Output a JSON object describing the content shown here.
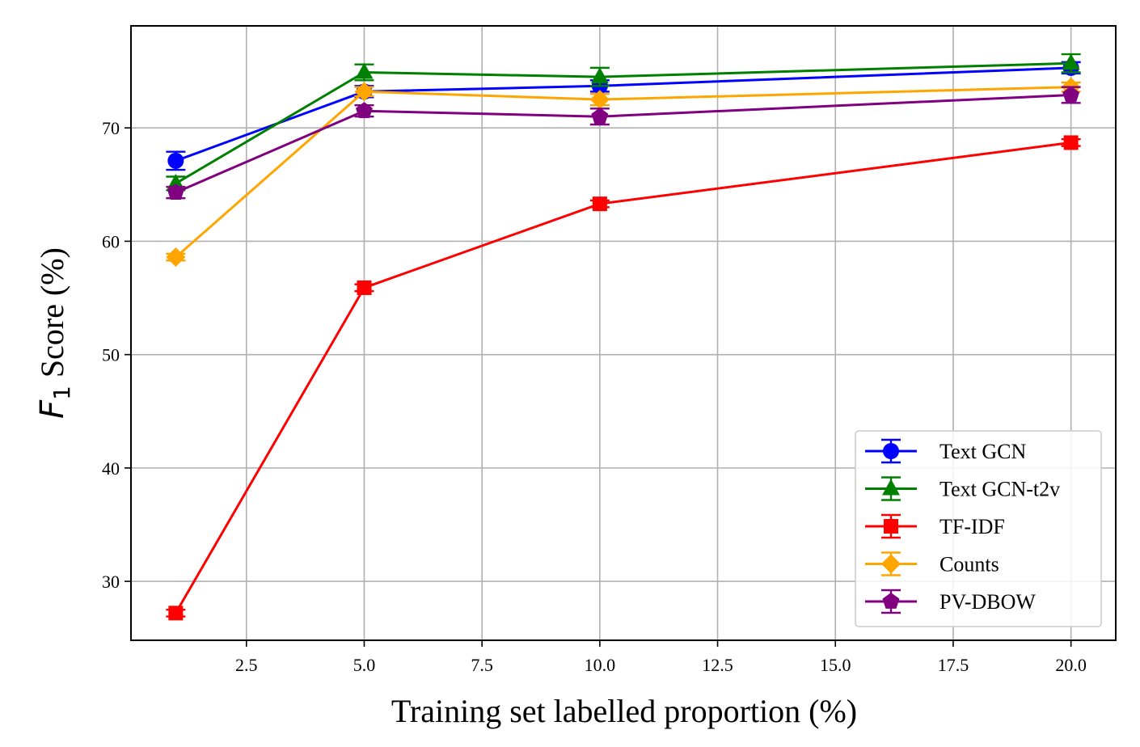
{
  "chart_data": {
    "type": "line",
    "xlabel": "Training set labelled proportion (%)",
    "ylabel": "Score (%)",
    "ylabel_symbol": "F",
    "ylabel_subscript": "1",
    "x": [
      1,
      5,
      10,
      20
    ],
    "xlim": [
      0.05,
      20.95
    ],
    "ylim": [
      24.8,
      79.0
    ],
    "xticks": [
      "2.5",
      "5.0",
      "7.5",
      "10.0",
      "12.5",
      "15.0",
      "17.5",
      "20.0"
    ],
    "yticks": [
      "30",
      "40",
      "50",
      "60",
      "70"
    ],
    "grid": true,
    "legend_position": "lower right",
    "series": [
      {
        "name": "Text GCN",
        "color": "#0000ff",
        "marker": "circle",
        "values": [
          67.1,
          73.2,
          73.7,
          75.3
        ],
        "errors": [
          0.8,
          0.5,
          0.5,
          0.5
        ]
      },
      {
        "name": "Text GCN-t2v",
        "color": "#008000",
        "marker": "triangle",
        "values": [
          65.1,
          74.9,
          74.5,
          75.7
        ],
        "errors": [
          0.6,
          0.7,
          0.8,
          0.8
        ]
      },
      {
        "name": "TF-IDF",
        "color": "#ff0000",
        "marker": "square",
        "values": [
          27.2,
          55.9,
          63.3,
          68.7
        ],
        "errors": [
          0.3,
          0.3,
          0.3,
          0.3
        ]
      },
      {
        "name": "Counts",
        "color": "#ffa500",
        "marker": "diamond",
        "values": [
          58.6,
          73.2,
          72.5,
          73.6
        ],
        "errors": [
          0.3,
          0.4,
          0.5,
          0.4
        ]
      },
      {
        "name": "PV-DBOW",
        "color": "#800080",
        "marker": "pentagon",
        "values": [
          64.3,
          71.5,
          71.0,
          72.9
        ],
        "errors": [
          0.5,
          0.5,
          0.7,
          0.7
        ]
      }
    ]
  }
}
